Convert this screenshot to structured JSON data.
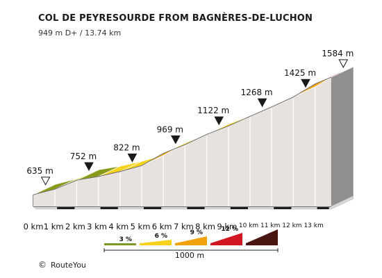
{
  "chart_data": {
    "type": "area",
    "title": "COL DE PEYRESOURDE FROM BAGNÈRES-DE-LUCHON",
    "subtitle": "949 m D+ / 13.74 km",
    "x_unit": "km",
    "x_ticks": [
      "0 km",
      "1 km",
      "2 km",
      "3 km",
      "4 km",
      "5 km",
      "6 km",
      "7 km",
      "8 km",
      "9 km",
      "10 km",
      "11 km",
      "12 km",
      "13 km"
    ],
    "distance_km": [
      0,
      1,
      2,
      3,
      4,
      5,
      6,
      7,
      8,
      9,
      10,
      11,
      12,
      13,
      13.74
    ],
    "elevation_m": [
      635,
      680,
      752,
      782,
      822,
      870,
      969,
      1040,
      1122,
      1190,
      1268,
      1345,
      1425,
      1530,
      1584
    ],
    "segment_gradient_class": [
      "3",
      "6",
      "3",
      "6",
      "6",
      "9",
      "6",
      "6",
      "6",
      "6",
      "6",
      "6",
      "9",
      "12",
      "6"
    ],
    "annotations": [
      {
        "km": 0,
        "label": "635 m",
        "marker": "open"
      },
      {
        "km": 2,
        "label": "752 m",
        "marker": "filled"
      },
      {
        "km": 4,
        "label": "822 m",
        "marker": "filled"
      },
      {
        "km": 6,
        "label": "969 m",
        "marker": "filled"
      },
      {
        "km": 8,
        "label": "1122 m",
        "marker": "filled"
      },
      {
        "km": 10,
        "label": "1268 m",
        "marker": "filled"
      },
      {
        "km": 12,
        "label": "1425 m",
        "marker": "filled"
      },
      {
        "km": 13.74,
        "label": "1584 m",
        "marker": "open"
      }
    ],
    "legend": {
      "items": [
        {
          "label": "3 %",
          "color": "#7a9a1e"
        },
        {
          "label": "6 %",
          "color": "#f5d21b"
        },
        {
          "label": "9 %",
          "color": "#f0a30f"
        },
        {
          "label": "12 %",
          "color": "#d0161e"
        },
        {
          "label": "",
          "color": "#4a1410"
        }
      ],
      "scale_label": "1000 m"
    },
    "gradient_colors": {
      "3": "#8a9b1c",
      "6": "#f5d21b",
      "9": "#f0a30f",
      "12": "#c8131d"
    }
  },
  "header": {
    "title": "COL DE PEYRESOURDE FROM BAGNÈRES-DE-LUCHON",
    "subtitle": "949 m D+ / 13.74 km"
  },
  "footer": {
    "copyright_symbol": "©",
    "credit": "RouteYou"
  }
}
